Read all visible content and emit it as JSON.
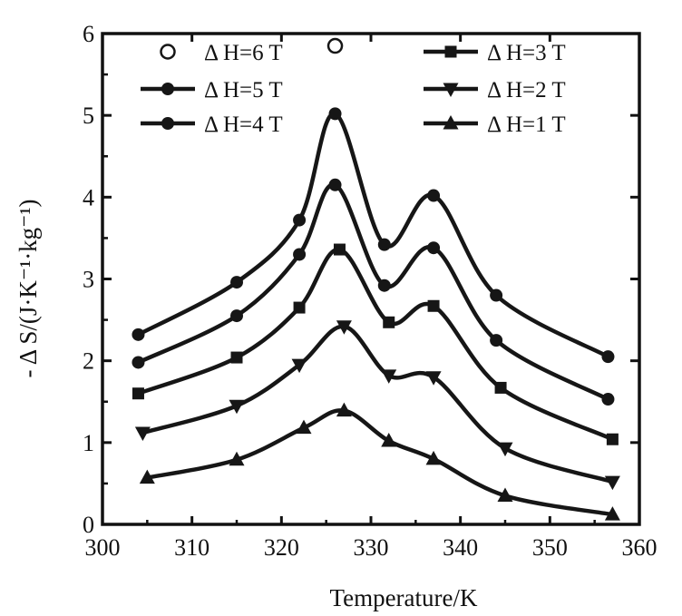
{
  "chart_data": {
    "type": "line",
    "title": "",
    "xlabel": "Temperature/K",
    "ylabel": "- Δ S/(J·K⁻¹·kg⁻¹)",
    "xlim": [
      300,
      360
    ],
    "ylim": [
      0,
      6
    ],
    "xticks": [
      300,
      310,
      320,
      330,
      340,
      350,
      360
    ],
    "yticks": [
      0,
      1,
      2,
      3,
      4,
      5,
      6
    ],
    "grid": false,
    "legend_position": "top",
    "colors": {
      "line": "#161616",
      "axis": "#111111"
    },
    "series": [
      {
        "name": "Δ H=6 T",
        "marker": "open-circle",
        "x": [
          326
        ],
        "y": [
          5.85
        ]
      },
      {
        "name": "Δ H=5 T",
        "marker": "filled-circle",
        "x": [
          304,
          315,
          322,
          326,
          331.5,
          337,
          344,
          356.5
        ],
        "y": [
          2.32,
          2.96,
          3.72,
          5.02,
          3.42,
          4.02,
          2.8,
          2.05
        ]
      },
      {
        "name": "Δ H=4 T",
        "marker": "filled-circle",
        "x": [
          304,
          315,
          322,
          326,
          331.5,
          337,
          344,
          356.5
        ],
        "y": [
          1.98,
          2.55,
          3.3,
          4.15,
          2.92,
          3.38,
          2.25,
          1.53
        ]
      },
      {
        "name": "Δ H=3 T",
        "marker": "filled-square",
        "x": [
          304,
          315,
          322,
          326.5,
          332,
          337,
          344.5,
          357
        ],
        "y": [
          1.6,
          2.04,
          2.65,
          3.36,
          2.47,
          2.67,
          1.67,
          1.04
        ]
      },
      {
        "name": "Δ H=2 T",
        "marker": "triangle-down",
        "x": [
          304.5,
          315,
          322,
          327,
          332,
          337,
          345,
          357
        ],
        "y": [
          1.12,
          1.45,
          1.95,
          2.42,
          1.82,
          1.8,
          0.93,
          0.52
        ]
      },
      {
        "name": "Δ H=1 T",
        "marker": "triangle-up",
        "x": [
          305,
          315,
          322.5,
          327,
          332,
          337,
          345,
          357
        ],
        "y": [
          0.57,
          0.79,
          1.18,
          1.39,
          1.02,
          0.8,
          0.35,
          0.12
        ]
      }
    ]
  }
}
